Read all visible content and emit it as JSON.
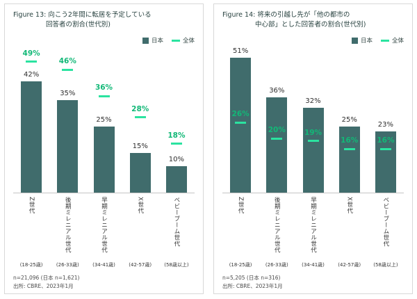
{
  "colors": {
    "bar": "#406c6c",
    "marker": "#2be3a0",
    "marker_text": "#12b877",
    "title_text": "#27413f"
  },
  "chart_data": [
    {
      "type": "bar",
      "figure": "Figure 13",
      "title": "Figure 13: 向こう2年間に転居を予定している回答者の割合(世代別)",
      "title_line1": "Figure 13: 向こう2年間に転居を予定している",
      "title_line2": "回答者の割合(世代別)",
      "legend": [
        "日本",
        "全体"
      ],
      "legend_position": "top-right",
      "categories": [
        "Z世代",
        "後期ミレニアル世代",
        "早期ミレニアル世代",
        "X世代",
        "ベビーブーム世代"
      ],
      "category_ages": [
        "(18-25歳)",
        "(26-33歳)",
        "(34-41歳)",
        "(42-57歳)",
        "(58歳以上)"
      ],
      "series": [
        {
          "name": "日本",
          "values": [
            42,
            35,
            25,
            15,
            10
          ]
        },
        {
          "name": "全体",
          "values": [
            49,
            46,
            36,
            28,
            18
          ]
        }
      ],
      "ylim": [
        0,
        55
      ],
      "grid": false,
      "footnote": "n=21,096 (日本 n=1,621)",
      "source": "出所: CBRE、2023年1月"
    },
    {
      "type": "bar",
      "figure": "Figure 14",
      "title": "Figure 14: 将来の引越し先が「他の都市の中心部」とした回答者の割合(世代別)",
      "title_line1": "Figure 14: 将来の引越し先が「他の都市の",
      "title_line2": "中心部」とした回答者の割合(世代別)",
      "legend": [
        "日本",
        "全体"
      ],
      "legend_position": "top-right",
      "categories": [
        "Z世代",
        "後期ミレニアル世代",
        "早期ミレニアル世代",
        "X世代",
        "ベビーブーム世代"
      ],
      "category_ages": [
        "(18-25歳)",
        "(26-33歳)",
        "(34-41歳)",
        "(42-57歳)",
        "(58歳以上)"
      ],
      "series": [
        {
          "name": "日本",
          "values": [
            51,
            36,
            32,
            25,
            23
          ]
        },
        {
          "name": "全体",
          "values": [
            26,
            20,
            19,
            16,
            16
          ]
        }
      ],
      "ylim": [
        0,
        55
      ],
      "grid": false,
      "footnote": "n=5,205 (日本 n=316)",
      "source": "出所: CBRE、2023年1月"
    }
  ]
}
